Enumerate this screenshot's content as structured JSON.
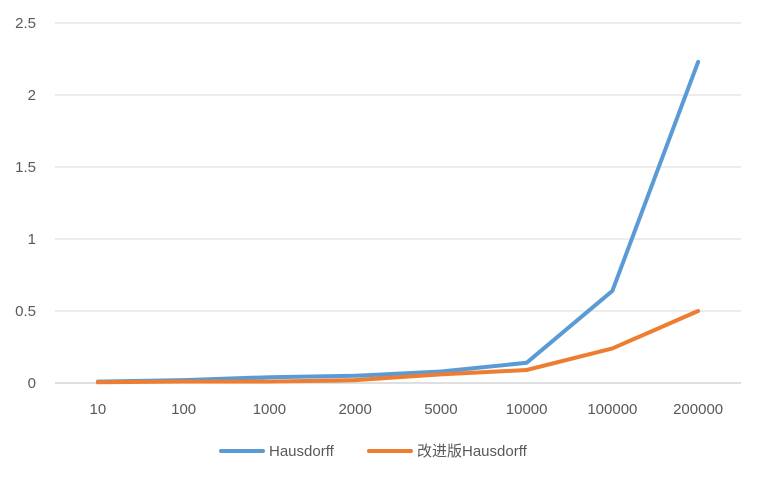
{
  "chart_data": {
    "type": "line",
    "title": "",
    "xlabel": "",
    "ylabel": "",
    "categories": [
      "10",
      "100",
      "1000",
      "2000",
      "5000",
      "10000",
      "100000",
      "200000"
    ],
    "ylim": [
      0,
      2.5
    ],
    "yticks": [
      "0",
      "0.5",
      "1",
      "1.5",
      "2",
      "2.5"
    ],
    "grid": true,
    "legend_position": "bottom",
    "series": [
      {
        "name": "Hausdorff",
        "color": "#5B9BD5",
        "values": [
          0.01,
          0.02,
          0.04,
          0.05,
          0.08,
          0.14,
          0.64,
          2.23
        ]
      },
      {
        "name": "改进版Hausdorff",
        "color": "#ED7D31",
        "values": [
          0.005,
          0.01,
          0.01,
          0.02,
          0.06,
          0.09,
          0.24,
          0.5
        ]
      }
    ]
  }
}
